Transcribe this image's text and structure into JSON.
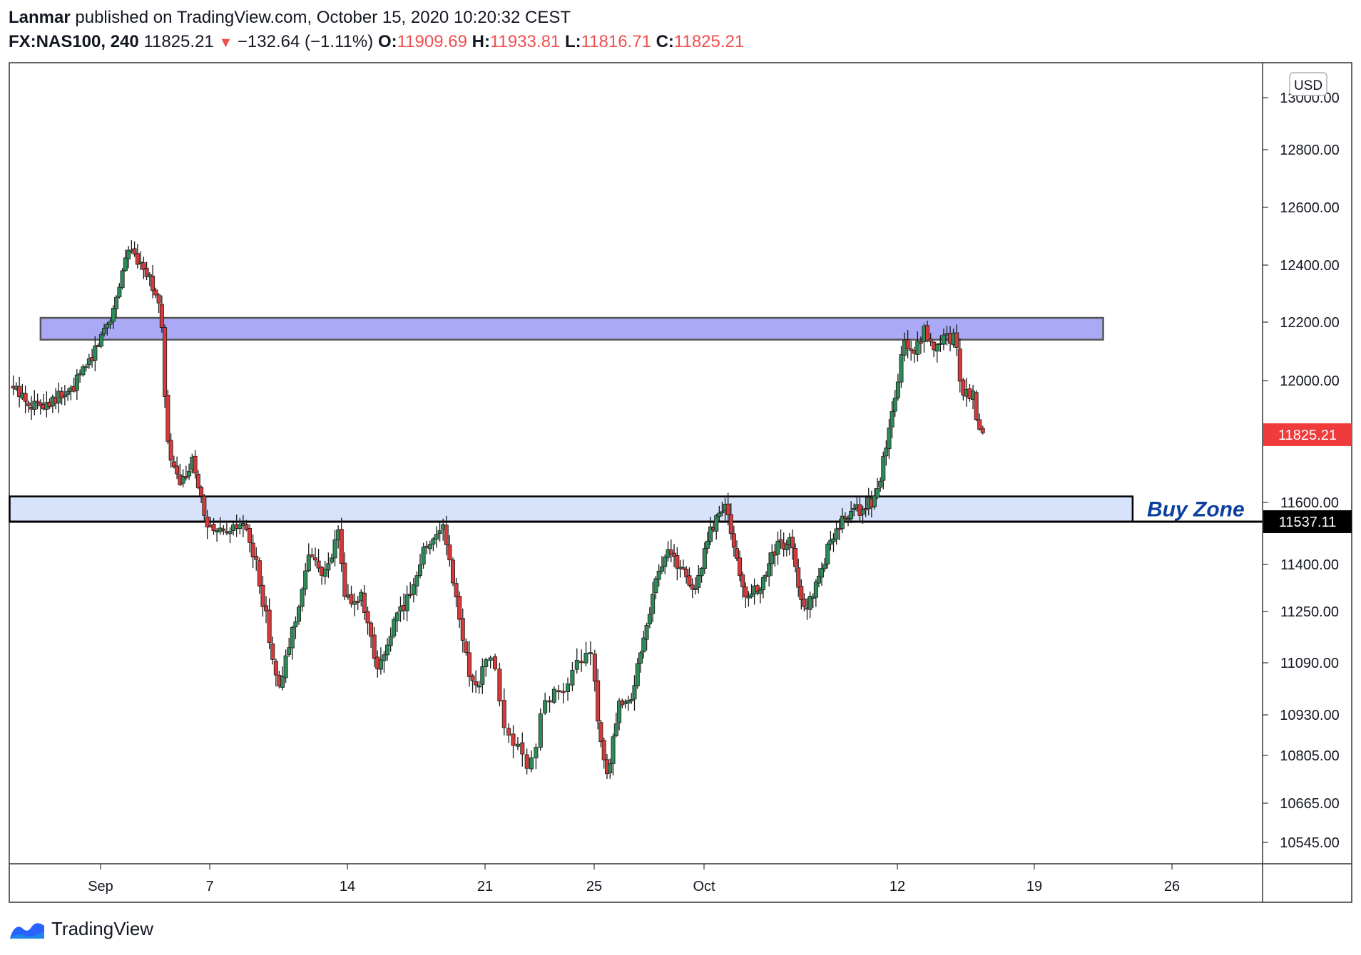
{
  "header": {
    "author": "Lanmar",
    "published_text": " published on TradingView.com, October 15, 2020 10:20:32 CEST",
    "symbol": "FX:NAS100, 240",
    "last": "11825.21",
    "change_arrow": "▼",
    "change": "−132.64 (−1.11%)",
    "o_label": "O:",
    "o_value": "11909.69",
    "h_label": "H:",
    "h_value": "11933.81",
    "l_label": "L:",
    "l_value": "11816.71",
    "c_label": "C:",
    "c_value": "11825.21"
  },
  "footer": {
    "brand": "TradingView"
  },
  "chart_data": {
    "type": "candlestick",
    "currency": "USD",
    "y_ticks": [
      {
        "label": "13000.00",
        "value": 13000
      },
      {
        "label": "12800.00",
        "value": 12800
      },
      {
        "label": "12600.00",
        "value": 12600
      },
      {
        "label": "12400.00",
        "value": 12400
      },
      {
        "label": "12200.00",
        "value": 12200
      },
      {
        "label": "12000.00",
        "value": 12000
      },
      {
        "label": "11600.00",
        "value": 11600
      },
      {
        "label": "11400.00",
        "value": 11400
      },
      {
        "label": "11250.00",
        "value": 11250
      },
      {
        "label": "11090.00",
        "value": 11090
      },
      {
        "label": "10930.00",
        "value": 10930
      },
      {
        "label": "10805.00",
        "value": 10805
      },
      {
        "label": "10665.00",
        "value": 10665
      },
      {
        "label": "10545.00",
        "value": 10545
      }
    ],
    "x_ticks": [
      {
        "label": "Sep",
        "day": 0
      },
      {
        "label": "7",
        "day": 6
      },
      {
        "label": "14",
        "day": 13
      },
      {
        "label": "21",
        "day": 20
      },
      {
        "label": "25",
        "day": 24
      },
      {
        "label": "Oct",
        "day": 30
      },
      {
        "label": "12",
        "day": 41
      },
      {
        "label": "19",
        "day": 48
      },
      {
        "label": "26",
        "day": 55
      }
    ],
    "price_labels": [
      {
        "text": "11825.21",
        "value": 11825.21,
        "bg": "#ef3b3b",
        "fg": "#ffffff"
      },
      {
        "text": "11537.11",
        "value": 11537.11,
        "bg": "#000000",
        "fg": "#ffffff"
      }
    ],
    "zones": [
      {
        "name": "resistance",
        "low": 12140,
        "high": 12215,
        "start_day": -3.3,
        "end_day": 51.5,
        "fill": "#a9a9f5",
        "stroke": "#555555"
      },
      {
        "name": "buy",
        "low": 11537.11,
        "high": 11620,
        "start_day": -5,
        "end_day": 53,
        "fill": "#d6e3fb",
        "stroke": "#000000",
        "label": "Buy Zone",
        "label_color": "#0b3fa0"
      }
    ],
    "trend_points": [
      {
        "day": -4.8,
        "value": 11980
      },
      {
        "day": -3.5,
        "value": 11920
      },
      {
        "day": -1.5,
        "value": 11960
      },
      {
        "day": -0.2,
        "value": 12100
      },
      {
        "day": 0.9,
        "value": 12250
      },
      {
        "day": 1.6,
        "value": 12450
      },
      {
        "day": 2.5,
        "value": 12410
      },
      {
        "day": 3.2,
        "value": 12300
      },
      {
        "day": 3.5,
        "value": 12220
      },
      {
        "day": 3.8,
        "value": 11800
      },
      {
        "day": 4.5,
        "value": 11650
      },
      {
        "day": 5.3,
        "value": 11740
      },
      {
        "day": 6.0,
        "value": 11510
      },
      {
        "day": 7.0,
        "value": 11490
      },
      {
        "day": 7.9,
        "value": 11530
      },
      {
        "day": 8.6,
        "value": 11380
      },
      {
        "day": 9.7,
        "value": 11000
      },
      {
        "day": 10.4,
        "value": 11200
      },
      {
        "day": 11.3,
        "value": 11440
      },
      {
        "day": 12.1,
        "value": 11360
      },
      {
        "day": 12.7,
        "value": 11510
      },
      {
        "day": 13.0,
        "value": 11290
      },
      {
        "day": 13.9,
        "value": 11290
      },
      {
        "day": 14.7,
        "value": 11050
      },
      {
        "day": 15.5,
        "value": 11210
      },
      {
        "day": 16.3,
        "value": 11300
      },
      {
        "day": 17.0,
        "value": 11440
      },
      {
        "day": 18.0,
        "value": 11530
      },
      {
        "day": 19.0,
        "value": 11180
      },
      {
        "day": 19.6,
        "value": 11000
      },
      {
        "day": 20.4,
        "value": 11120
      },
      {
        "day": 20.9,
        "value": 10880
      },
      {
        "day": 21.8,
        "value": 10760
      },
      {
        "day": 22.4,
        "value": 10990
      },
      {
        "day": 23.1,
        "value": 11000
      },
      {
        "day": 24.0,
        "value": 11160
      },
      {
        "day": 24.4,
        "value": 10870
      },
      {
        "day": 24.9,
        "value": 10730
      },
      {
        "day": 25.5,
        "value": 10950
      },
      {
        "day": 26.1,
        "value": 10960
      },
      {
        "day": 27.0,
        "value": 11200
      },
      {
        "day": 27.5,
        "value": 11350
      },
      {
        "day": 28.3,
        "value": 11450
      },
      {
        "day": 28.9,
        "value": 11380
      },
      {
        "day": 29.7,
        "value": 11320
      },
      {
        "day": 30.5,
        "value": 11500
      },
      {
        "day": 31.3,
        "value": 11600
      },
      {
        "day": 31.9,
        "value": 11460
      },
      {
        "day": 32.4,
        "value": 11300
      },
      {
        "day": 33.4,
        "value": 11320
      },
      {
        "day": 34.3,
        "value": 11460
      },
      {
        "day": 35.2,
        "value": 11470
      },
      {
        "day": 35.8,
        "value": 11240
      },
      {
        "day": 36.6,
        "value": 11350
      },
      {
        "day": 37.4,
        "value": 11480
      },
      {
        "day": 38.3,
        "value": 11560
      },
      {
        "day": 39.2,
        "value": 11580
      },
      {
        "day": 40.0,
        "value": 11620
      },
      {
        "day": 40.6,
        "value": 11800
      },
      {
        "day": 41.1,
        "value": 11960
      },
      {
        "day": 41.5,
        "value": 12130
      },
      {
        "day": 42.0,
        "value": 12080
      },
      {
        "day": 42.5,
        "value": 12170
      },
      {
        "day": 43.0,
        "value": 12110
      },
      {
        "day": 43.5,
        "value": 12160
      },
      {
        "day": 44.1,
        "value": 12140
      },
      {
        "day": 44.5,
        "value": 11950
      },
      {
        "day": 45.0,
        "value": 11960
      },
      {
        "day": 45.4,
        "value": 11825
      }
    ]
  }
}
